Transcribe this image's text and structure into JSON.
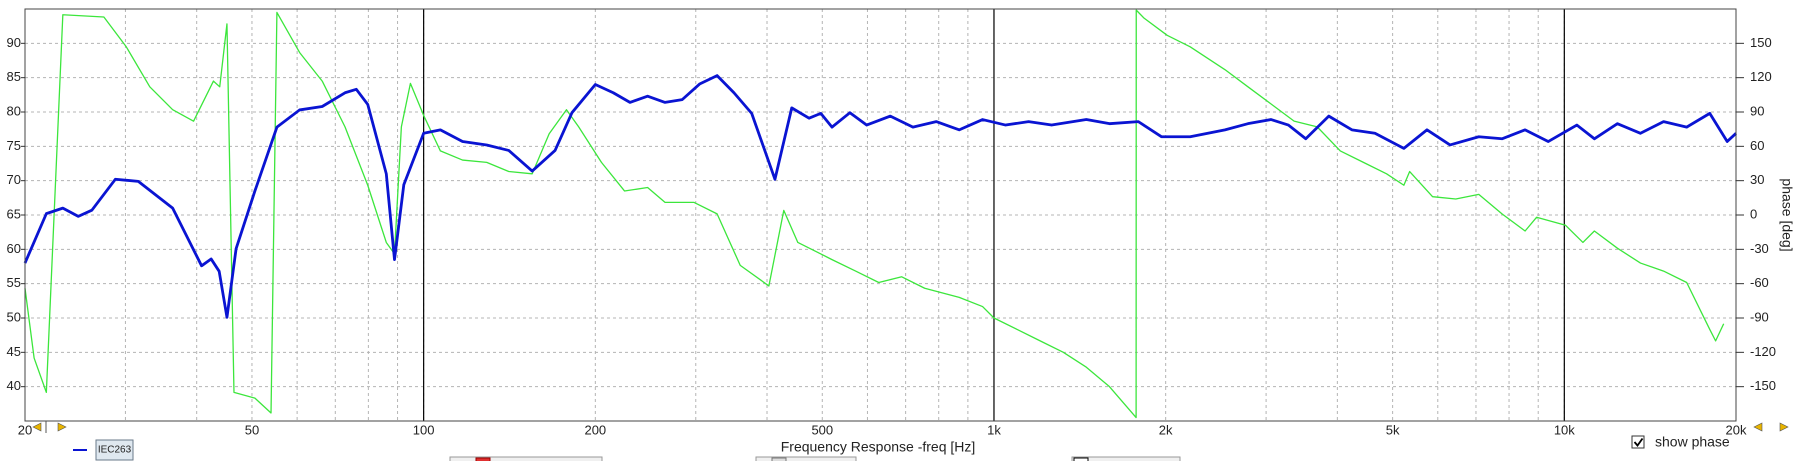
{
  "chart_data": {
    "type": "line",
    "xlabel": "Frequency Response -freq [Hz]",
    "y2label": "phase [deg]",
    "xscale": "log",
    "xlim": [
      20,
      20000
    ],
    "xticks": [
      20,
      50,
      100,
      200,
      500,
      {
        "value": 1000,
        "label": "1k"
      },
      {
        "value": 2000,
        "label": "2k"
      },
      {
        "value": 5000,
        "label": "5k"
      },
      {
        "value": 10000,
        "label": "10k"
      },
      {
        "value": 20000,
        "label": "20k"
      }
    ],
    "x_minor_grid": [
      30,
      40,
      60,
      70,
      80,
      90,
      300,
      400,
      600,
      700,
      800,
      900,
      3000,
      4000,
      6000,
      7000,
      8000,
      9000
    ],
    "x_decade_lines": [
      100,
      1000,
      10000
    ],
    "ylim": [
      35,
      95
    ],
    "yticks": [
      40,
      45,
      50,
      55,
      60,
      65,
      70,
      75,
      80,
      85,
      90
    ],
    "y2lim": [
      -180,
      180
    ],
    "y2ticks": [
      -150,
      -120,
      -90,
      -60,
      -30,
      0,
      30,
      60,
      90,
      120,
      150
    ],
    "grid": true,
    "series": [
      {
        "name": "IEC263",
        "color": "#0a14d2",
        "x": [
          20,
          21.8,
          23.3,
          24.8,
          26.2,
          28.8,
          31.6,
          36.3,
          40.8,
          42.4,
          43.8,
          45.2,
          46.9,
          50.6,
          55.3,
          60.6,
          66.4,
          72.8,
          76.2,
          79.8,
          86,
          88.9,
          92.3,
          100,
          107,
          117,
          129,
          141,
          155,
          170,
          182,
          200,
          215,
          230,
          247,
          265,
          284,
          305,
          327,
          350,
          376,
          413,
          442,
          474,
          497,
          520,
          559,
          598,
          658,
          721,
          792,
          869,
          955,
          1048,
          1150,
          1262,
          1452,
          1594,
          1791,
          1966,
          2208,
          2541,
          2788,
          3061,
          3283,
          3521,
          3864,
          4242,
          4656,
          5232,
          5743,
          6304,
          7080,
          7776,
          8536,
          9370,
          10520,
          11290,
          12390,
          13600,
          14930,
          16390,
          17990,
          19300,
          20000
        ],
        "values": [
          58.0,
          65.2,
          66.0,
          64.8,
          65.7,
          70.2,
          69.9,
          66.0,
          57.6,
          58.6,
          56.8,
          50.1,
          60.1,
          68.5,
          77.8,
          80.3,
          80.8,
          82.8,
          83.3,
          81.1,
          71.0,
          58.5,
          69.4,
          76.9,
          77.4,
          75.7,
          75.2,
          74.4,
          71.4,
          74.4,
          79.9,
          84.0,
          82.8,
          81.4,
          82.3,
          81.4,
          81.8,
          84.1,
          85.3,
          82.8,
          79.8,
          70.2,
          80.6,
          79.1,
          79.8,
          77.8,
          79.9,
          78.1,
          79.4,
          77.8,
          78.6,
          77.4,
          78.9,
          78.1,
          78.6,
          78.1,
          78.9,
          78.3,
          78.6,
          76.4,
          76.4,
          77.4,
          78.3,
          78.9,
          78.1,
          76.1,
          79.4,
          77.4,
          76.9,
          74.7,
          77.4,
          75.2,
          76.4,
          76.1,
          77.4,
          75.7,
          78.1,
          76.1,
          78.3,
          76.9,
          78.6,
          77.8,
          79.8,
          75.7,
          76.9
        ]
      },
      {
        "color": "#3ce63c",
        "axis": "y2",
        "x": [
          20,
          20.75,
          21.8,
          23.3,
          27.5,
          30.1,
          33.1,
          36.3,
          39.5,
          42.8,
          43.9,
          45.2,
          46.5,
          50.6,
          54,
          55.3,
          60.6,
          66.4,
          72.8,
          79.8,
          86,
          88.9,
          91.4,
          94.8,
          100,
          107,
          117,
          129,
          141,
          155,
          166,
          178,
          187,
          205,
          225,
          247,
          265,
          298,
          327,
          359,
          403,
          428,
          453,
          497,
          520,
          572,
          628,
          689,
          756,
          869,
          955,
          1000,
          1098,
          1205,
          1323,
          1452,
          1594,
          1775,
          1776,
          1833,
          2012,
          2208,
          2541,
          2788,
          3061,
          3359,
          3688,
          4048,
          4444,
          4879,
          5232,
          5356,
          5875,
          6452,
          7080,
          7776,
          8536,
          8940,
          10050,
          10780,
          11290,
          12390,
          13600,
          14930,
          16390,
          17990,
          18420,
          19030
        ],
        "values": [
          -64,
          -125,
          -155,
          175,
          173,
          147,
          112,
          92,
          82,
          117,
          112,
          167,
          -155,
          -160,
          -173,
          177,
          142,
          117,
          77,
          26,
          -24,
          -34,
          77,
          115,
          87,
          56,
          48,
          46,
          38,
          36,
          71,
          92,
          77,
          46,
          21,
          24,
          11,
          11,
          1,
          -44,
          -62,
          4,
          -24,
          -34,
          -39,
          -49,
          -59,
          -54,
          -64,
          -72,
          -80,
          -90,
          -100,
          -110,
          -120,
          -133,
          -150,
          -177,
          179,
          172,
          157,
          147,
          127,
          112,
          97,
          82,
          77,
          56,
          46,
          36,
          26,
          38,
          16,
          14,
          18,
          1,
          -14,
          -2,
          -9,
          -24,
          -14,
          -29,
          -42,
          -49,
          -59,
          -100,
          -110,
          -95
        ]
      }
    ],
    "controls": {
      "show_phase": {
        "label": "show phase",
        "checked": true
      }
    }
  }
}
